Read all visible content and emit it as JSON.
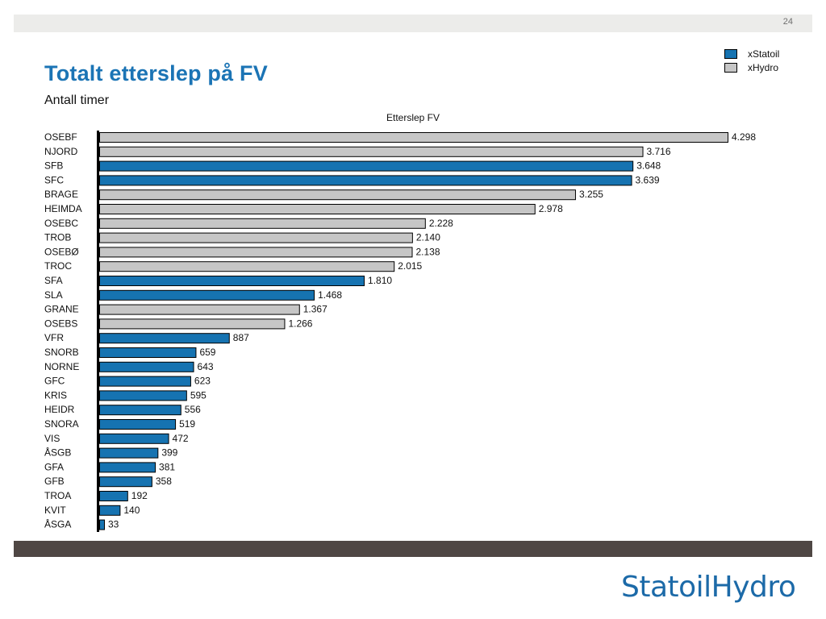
{
  "page_number": "24",
  "title": "Totalt etterslep på FV",
  "subtitle": "Antall timer",
  "logo_text": "StatoilHydro",
  "colors": {
    "xStatoil": "#1673b1",
    "xHydro": "#c6c6c6",
    "accent": "#1b74b5"
  },
  "legend": [
    {
      "name": "xStatoil",
      "color": "#1673b1"
    },
    {
      "name": "xHydro",
      "color": "#c6c6c6"
    }
  ],
  "chart_data": {
    "type": "bar",
    "orientation": "horizontal",
    "title": "Etterslep FV",
    "xlabel": "",
    "ylabel": "",
    "grid": false,
    "legend_position": "top-right",
    "xlim": [
      0,
      4298
    ],
    "categories": [
      "OSEBF",
      "NJORD",
      "SFB",
      "SFC",
      "BRAGE",
      "HEIMDA",
      "OSEBC",
      "TROB",
      "OSEBØ",
      "TROC",
      "SFA",
      "SLA",
      "GRANE",
      "OSEBS",
      "VFR",
      "SNORB",
      "NORNE",
      "GFC",
      "KRIS",
      "HEIDR",
      "SNORA",
      "VIS",
      "ÅSGB",
      "GFA",
      "GFB",
      "TROA",
      "KVIT",
      "ÅSGA"
    ],
    "values": [
      4298,
      3716,
      3648,
      3639,
      3255,
      2978,
      2228,
      2140,
      2138,
      2015,
      1810,
      1468,
      1367,
      1266,
      887,
      659,
      643,
      623,
      595,
      556,
      519,
      472,
      399,
      381,
      358,
      192,
      140,
      33
    ],
    "value_labels": [
      "4.298",
      "3.716",
      "3.648",
      "3.639",
      "3.255",
      "2.978",
      "2.228",
      "2.140",
      "2.138",
      "2.015",
      "1.810",
      "1.468",
      "1.367",
      "1.266",
      "887",
      "659",
      "643",
      "623",
      "595",
      "556",
      "519",
      "472",
      "399",
      "381",
      "358",
      "192",
      "140",
      "33"
    ],
    "groups": [
      "xHydro",
      "xHydro",
      "xStatoil",
      "xStatoil",
      "xHydro",
      "xHydro",
      "xHydro",
      "xHydro",
      "xHydro",
      "xHydro",
      "xStatoil",
      "xStatoil",
      "xHydro",
      "xHydro",
      "xStatoil",
      "xStatoil",
      "xStatoil",
      "xStatoil",
      "xStatoil",
      "xStatoil",
      "xStatoil",
      "xStatoil",
      "xStatoil",
      "xStatoil",
      "xStatoil",
      "xStatoil",
      "xStatoil",
      "xStatoil"
    ]
  }
}
